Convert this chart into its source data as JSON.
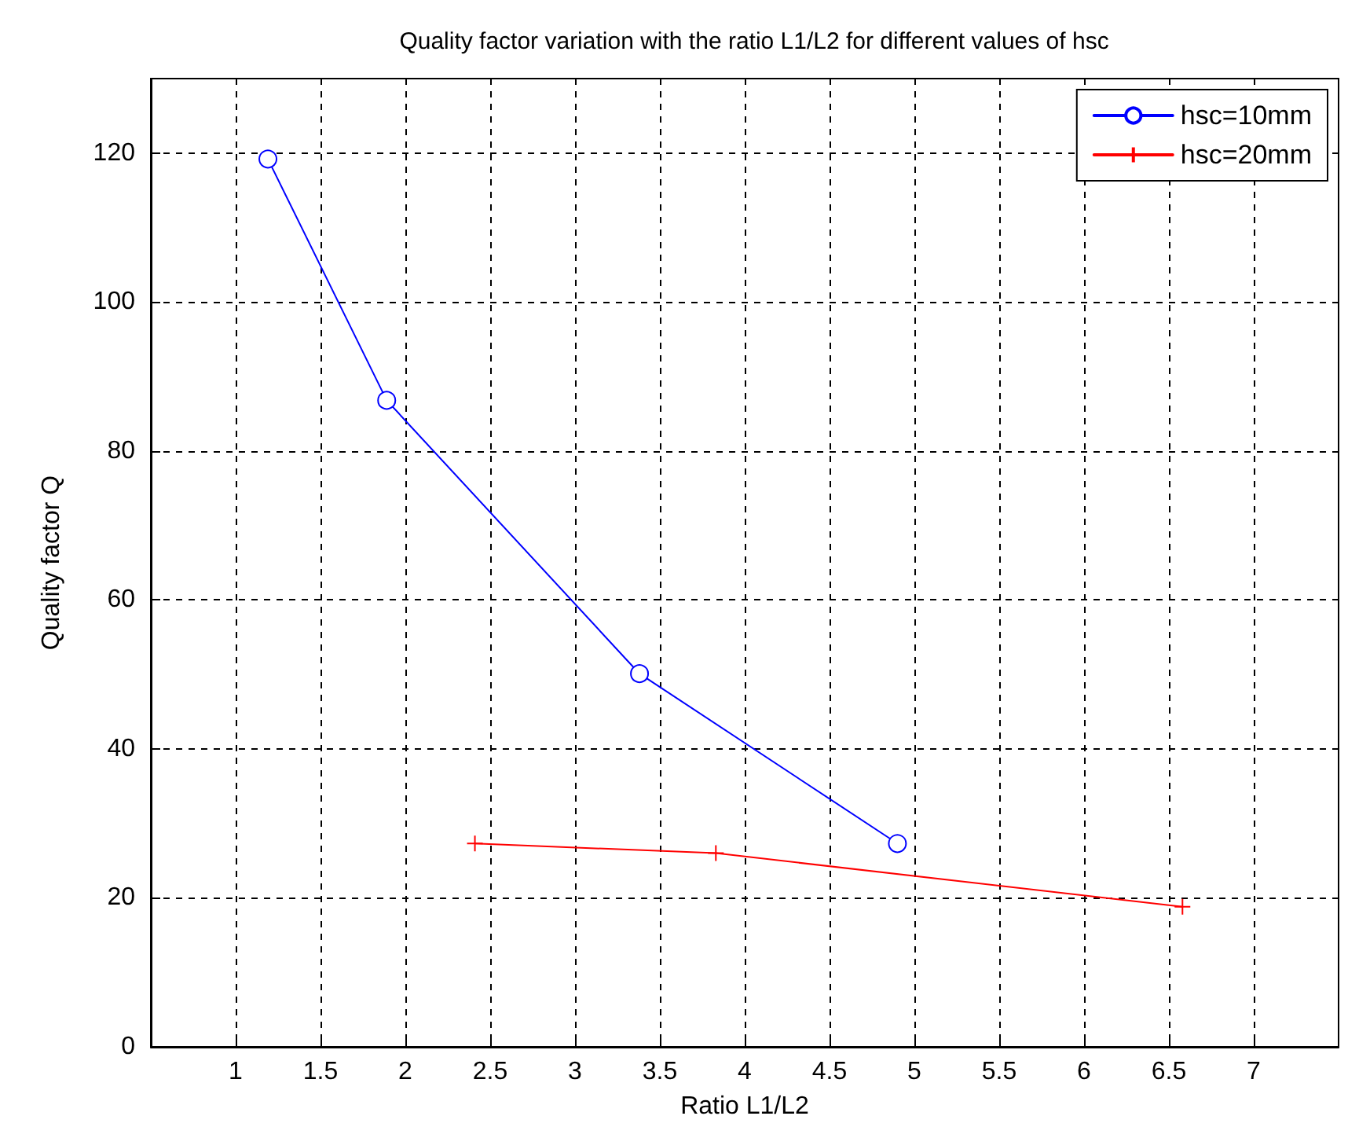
{
  "chart_data": {
    "type": "line",
    "title": "Quality factor variation with the ratio L1/L2 for different values of hsc",
    "xlabel": "Ratio L1/L2",
    "ylabel": "Quality factor Q",
    "series": [
      {
        "name": "hsc=10mm",
        "color": "#0000ff",
        "marker": "circle",
        "x": [
          1.19,
          1.89,
          3.38,
          4.9
        ],
        "values": [
          119.2,
          86.8,
          50.1,
          27.3
        ]
      },
      {
        "name": "hsc=20mm",
        "color": "#ff0000",
        "marker": "cross",
        "x": [
          2.41,
          3.83,
          6.58
        ],
        "values": [
          27.3,
          26,
          18.8
        ]
      }
    ],
    "xlim": [
      0.5,
      7.5
    ],
    "xticks": [
      1,
      1.5,
      2,
      2.5,
      3,
      3.5,
      4,
      4.5,
      5,
      5.5,
      6,
      6.5,
      7
    ],
    "ylim": [
      0,
      130
    ],
    "yticks": [
      0,
      20,
      40,
      60,
      80,
      100,
      120
    ],
    "grid": true,
    "legend": "top right",
    "line_style": "solid"
  }
}
